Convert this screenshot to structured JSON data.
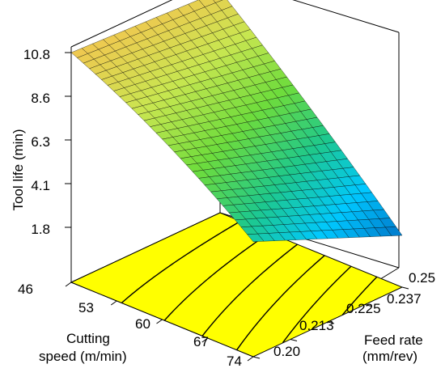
{
  "chart_data": {
    "type": "surface3d",
    "zlabel": "Tool life (min)",
    "xlabel_lines": [
      "Cutting",
      "speed (m/min)"
    ],
    "ylabel_lines": [
      "Feed rate",
      "(mm/rev)"
    ],
    "z_ticks": [
      "10.8",
      "8.6",
      "6.3",
      "4.1",
      "1.8"
    ],
    "x_ticks": [
      "46",
      "53",
      "60",
      "67",
      "74"
    ],
    "y_ticks": [
      "0.20",
      "0.213",
      "0.225",
      "0.237",
      "0.25"
    ],
    "x_range": [
      46,
      74
    ],
    "y_range": [
      0.2,
      0.25
    ],
    "z_range": [
      1.8,
      10.8
    ],
    "surface_corners": [
      {
        "cutting_speed": 46,
        "feed_rate": 0.2,
        "tool_life": 10.8
      },
      {
        "cutting_speed": 46,
        "feed_rate": 0.25,
        "tool_life": 10.4
      },
      {
        "cutting_speed": 74,
        "feed_rate": 0.2,
        "tool_life": 5.0
      },
      {
        "cutting_speed": 74,
        "feed_rate": 0.25,
        "tool_life": 1.8
      }
    ],
    "contour_levels": 6,
    "surface_colormap": [
      "#0074c8",
      "#00c8ff",
      "#1ec88c",
      "#6edc3c",
      "#c8e650",
      "#f0c850"
    ],
    "floor_color": "#ffff00"
  }
}
